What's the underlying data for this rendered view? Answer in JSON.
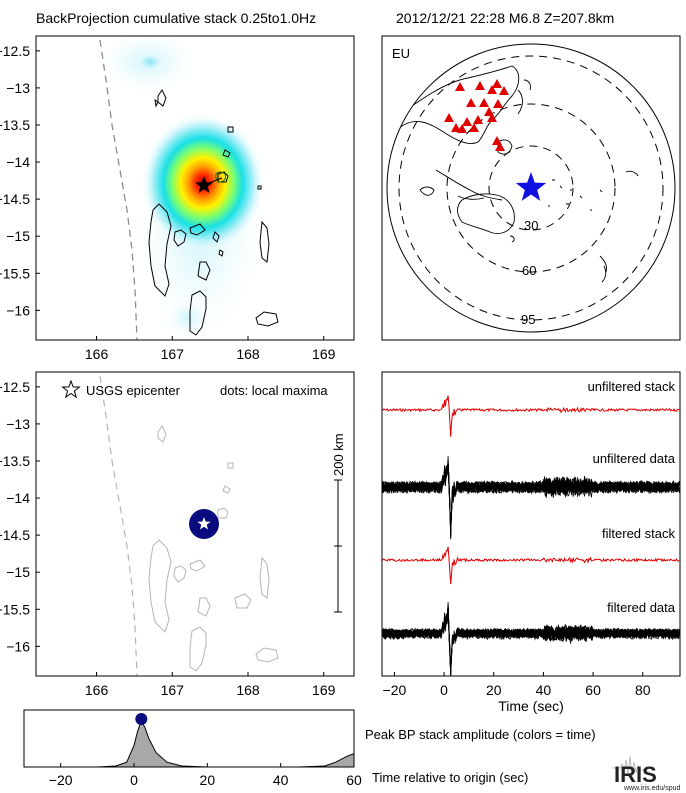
{
  "header": {
    "title": "BackProjection cumulative stack 0.25to1.0Hz",
    "event": "2012/12/21 22:28  M6.8  Z=207.8km"
  },
  "colors": {
    "station": "#e00000",
    "epicenter_globe": "#1010e0",
    "bp_marker": "#0b0b80",
    "stack_trace": "#e00000",
    "data_trace": "#000000",
    "peak_fill": "#a8a8a8",
    "coast": "#000000",
    "coast_light": "#b5b5b5"
  },
  "footer": {
    "peak_label": "Peak BP stack amplitude (colors = time)",
    "time_label": "Time relative to origin (sec)",
    "logo_text": "IRIS",
    "logo_url": "www.iris.edu/spud"
  },
  "chart_data": [
    {
      "id": "bp_map",
      "type": "heatmap",
      "title": "BackProjection cumulative stack 0.25to1.0Hz",
      "xlim": [
        165.2,
        169.4
      ],
      "ylim": [
        -16.4,
        -12.3
      ],
      "xticks": [
        "166",
        "167",
        "168",
        "169"
      ],
      "yticks": [
        "-12.5",
        "-13",
        "-13.5",
        "-14",
        "-14.5",
        "-15",
        "-15.5",
        "-16"
      ],
      "epicenter": {
        "lon": 167.28,
        "lat": -14.38
      },
      "peak": {
        "lon": 167.25,
        "lat": -14.35
      }
    },
    {
      "id": "globe",
      "type": "scatter",
      "label": "EU",
      "distance_rings_deg": [
        "30",
        "60",
        "95"
      ],
      "station_count": 18,
      "epicenter": "center-right"
    },
    {
      "id": "epicenter_map",
      "type": "scatter",
      "xlim": [
        165.2,
        169.4
      ],
      "ylim": [
        -16.4,
        -12.3
      ],
      "xticks": [
        "166",
        "167",
        "168",
        "169"
      ],
      "yticks": [
        "-12.5",
        "-13",
        "-13.5",
        "-14",
        "-14.5",
        "-15",
        "-15.5",
        "-16"
      ],
      "legend_epicenter": "USGS epicenter",
      "legend_dots": "dots: local maxima",
      "scale_label": "200 km",
      "epicenter": {
        "lon": 167.28,
        "lat": -14.38
      }
    },
    {
      "id": "waveforms",
      "type": "line",
      "xlabel": "Time (sec)",
      "xlim": [
        -25,
        95
      ],
      "xticks": [
        "-20",
        "0",
        "20",
        "40",
        "60",
        "80"
      ],
      "series": [
        {
          "name": "unfiltered stack",
          "color": "#e00000"
        },
        {
          "name": "unfiltered data",
          "color": "#000000"
        },
        {
          "name": "filtered stack",
          "color": "#e00000"
        },
        {
          "name": "filtered data",
          "color": "#000000"
        }
      ]
    },
    {
      "id": "peak_amplitude",
      "type": "area",
      "xlim": [
        -30,
        60
      ],
      "xticks": [
        "-20",
        "0",
        "20",
        "40",
        "60"
      ],
      "x": [
        -30,
        -10,
        -5,
        -2,
        0,
        1,
        2,
        3,
        4,
        6,
        9,
        13,
        20,
        30,
        45,
        52,
        55,
        58,
        60
      ],
      "values": [
        0.0,
        0.0,
        0.02,
        0.1,
        0.45,
        0.75,
        0.96,
        0.82,
        0.6,
        0.3,
        0.1,
        0.02,
        0.0,
        0.0,
        0.0,
        0.02,
        0.1,
        0.22,
        0.28
      ],
      "peak": {
        "x": 2,
        "y": 1.0
      }
    }
  ]
}
